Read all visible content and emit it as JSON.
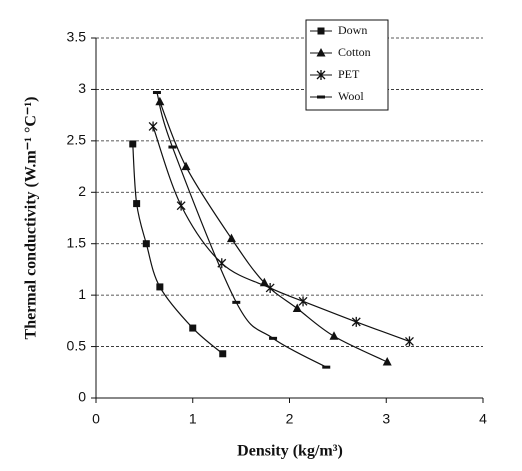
{
  "chart_data": {
    "type": "line",
    "x_label": "Density (kg/m³)",
    "y_label": "Thermal conductivity (W.m⁻¹ °C⁻¹)",
    "xlim": [
      0,
      4
    ],
    "xticks": [
      0,
      1,
      2,
      3,
      4
    ],
    "ylim": [
      0,
      3.5
    ],
    "yticks": [
      0,
      0.5,
      1,
      1.5,
      2,
      2.5,
      3,
      3.5
    ],
    "grid": true,
    "legend": "upper right",
    "series": [
      {
        "name": "Down",
        "color": "#111111",
        "marker": "square",
        "x": [
          0.38,
          0.42,
          0.52,
          0.66,
          1.0,
          1.31
        ],
        "values": [
          2.47,
          1.89,
          1.5,
          1.08,
          0.68,
          0.43
        ]
      },
      {
        "name": "Cotton",
        "color": "#111111",
        "marker": "triangle",
        "x": [
          0.66,
          0.93,
          1.4,
          1.74,
          2.08,
          2.46,
          3.01
        ],
        "values": [
          2.88,
          2.25,
          1.55,
          1.12,
          0.87,
          0.6,
          0.35
        ]
      },
      {
        "name": "PET",
        "color": "#111111",
        "marker": "star",
        "x": [
          0.59,
          0.88,
          1.3,
          1.8,
          2.14,
          2.69,
          3.24
        ],
        "values": [
          2.64,
          1.87,
          1.31,
          1.07,
          0.94,
          0.74,
          0.55
        ]
      },
      {
        "name": "Wool",
        "color": "#111111",
        "marker": "dash",
        "x": [
          0.63,
          0.79,
          1.45,
          1.83,
          2.38
        ],
        "values": [
          2.97,
          2.44,
          0.93,
          0.58,
          0.3
        ]
      }
    ]
  }
}
